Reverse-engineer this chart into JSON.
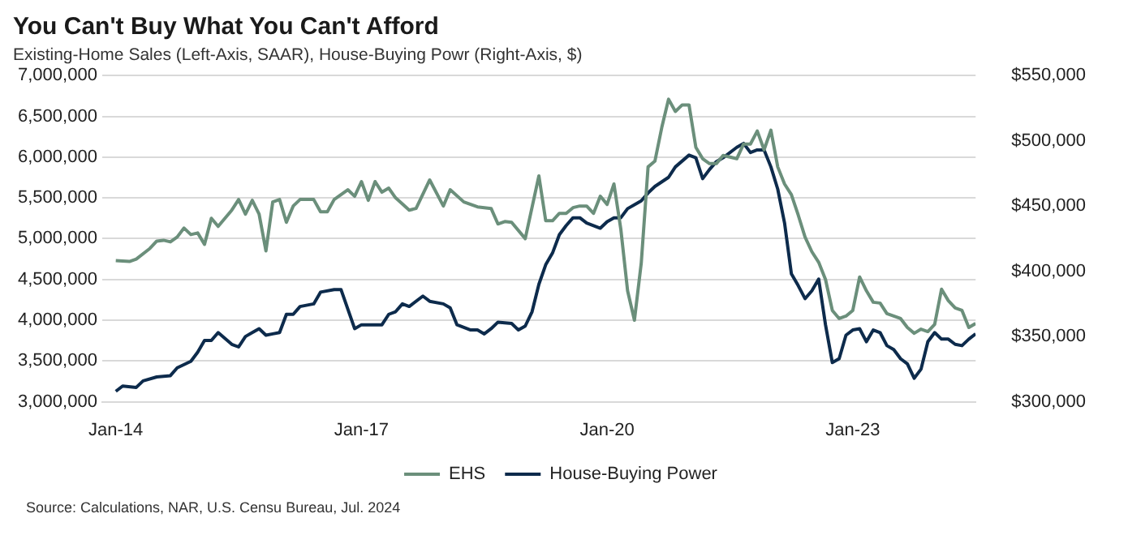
{
  "chart_data": {
    "type": "line",
    "title": "You Can't Buy What You Can't Afford",
    "subtitle": "Existing-Home Sales (Left-Axis, SAAR), House-Buying Powr (Right-Axis, $)",
    "annotations": [
      "Source: Calculations, NAR, U.S. Censu Bureau, Jul. 2024"
    ],
    "xlim": [
      "2013-11",
      "2024-07"
    ],
    "xticks": [
      {
        "value": "2014-01",
        "label": "Jan-14"
      },
      {
        "value": "2017-01",
        "label": "Jan-17"
      },
      {
        "value": "2020-01",
        "label": "Jan-20"
      },
      {
        "value": "2023-01",
        "label": "Jan-23"
      }
    ],
    "ylim": [
      3000000,
      7000000
    ],
    "yticks": [
      {
        "value": 3000000,
        "label": "3,000,000"
      },
      {
        "value": 3500000,
        "label": "3,500,000"
      },
      {
        "value": 4000000,
        "label": "4,000,000"
      },
      {
        "value": 4500000,
        "label": "4,500,000"
      },
      {
        "value": 5000000,
        "label": "5,000,000"
      },
      {
        "value": 5500000,
        "label": "5,500,000"
      },
      {
        "value": 6000000,
        "label": "6,000,000"
      },
      {
        "value": 6500000,
        "label": "6,500,000"
      },
      {
        "value": 7000000,
        "label": "7,000,000"
      }
    ],
    "y2lim": [
      300000,
      550000
    ],
    "y2ticks": [
      {
        "value": 300000,
        "label": "$300,000"
      },
      {
        "value": 350000,
        "label": "$350,000"
      },
      {
        "value": 400000,
        "label": "$400,000"
      },
      {
        "value": 450000,
        "label": "$450,000"
      },
      {
        "value": 500000,
        "label": "$500,000"
      },
      {
        "value": 550000,
        "label": "$550,000"
      }
    ],
    "grid": "y",
    "legend": "bottom",
    "marker": "none",
    "series": [
      {
        "name": "EHS",
        "color": "#6b8f7b",
        "x": [
          "2014-01",
          "2014-03",
          "2014-04",
          "2014-06",
          "2014-07",
          "2014-08",
          "2014-09",
          "2014-10",
          "2014-11",
          "2014-12",
          "2015-01",
          "2015-02",
          "2015-03",
          "2015-04",
          "2015-06",
          "2015-07",
          "2015-08",
          "2015-09",
          "2015-10",
          "2015-11",
          "2015-12",
          "2016-01",
          "2016-02",
          "2016-03",
          "2016-04",
          "2016-06",
          "2016-07",
          "2016-08",
          "2016-09",
          "2016-11",
          "2016-12",
          "2017-01",
          "2017-02",
          "2017-03",
          "2017-04",
          "2017-05",
          "2017-06",
          "2017-08",
          "2017-09",
          "2017-11",
          "2018-01",
          "2018-02",
          "2018-04",
          "2018-06",
          "2018-08",
          "2018-09",
          "2018-10",
          "2018-11",
          "2019-01",
          "2019-03",
          "2019-04",
          "2019-05",
          "2019-06",
          "2019-07",
          "2019-08",
          "2019-09",
          "2019-10",
          "2019-11",
          "2019-12",
          "2020-01",
          "2020-02",
          "2020-03",
          "2020-04",
          "2020-05",
          "2020-06",
          "2020-07",
          "2020-08",
          "2020-09",
          "2020-10",
          "2020-11",
          "2020-12",
          "2021-01",
          "2021-02",
          "2021-03",
          "2021-04",
          "2021-05",
          "2021-06",
          "2021-07",
          "2021-08",
          "2021-09",
          "2021-10",
          "2021-11",
          "2021-12",
          "2022-01",
          "2022-02",
          "2022-03",
          "2022-04",
          "2022-05",
          "2022-06",
          "2022-07",
          "2022-08",
          "2022-09",
          "2022-10",
          "2022-11",
          "2022-12",
          "2023-01",
          "2023-02",
          "2023-03",
          "2023-04",
          "2023-05",
          "2023-06",
          "2023-07",
          "2023-08",
          "2023-09",
          "2023-10",
          "2023-11",
          "2023-12",
          "2024-01",
          "2024-02",
          "2024-03",
          "2024-04",
          "2024-05",
          "2024-06",
          "2024-07"
        ],
        "values": [
          4730000,
          4720000,
          4750000,
          4880000,
          4970000,
          4980000,
          4960000,
          5020000,
          5130000,
          5050000,
          5070000,
          4930000,
          5250000,
          5150000,
          5350000,
          5480000,
          5300000,
          5470000,
          5300000,
          4850000,
          5450000,
          5480000,
          5200000,
          5400000,
          5480000,
          5480000,
          5330000,
          5330000,
          5480000,
          5600000,
          5520000,
          5700000,
          5470000,
          5700000,
          5570000,
          5620000,
          5500000,
          5350000,
          5370000,
          5720000,
          5400000,
          5600000,
          5450000,
          5390000,
          5370000,
          5180000,
          5210000,
          5200000,
          5000000,
          5770000,
          5220000,
          5220000,
          5310000,
          5310000,
          5380000,
          5400000,
          5400000,
          5310000,
          5520000,
          5420000,
          5670000,
          5120000,
          4360000,
          4000000,
          4700000,
          5880000,
          5950000,
          6360000,
          6710000,
          6560000,
          6640000,
          6640000,
          6120000,
          5980000,
          5920000,
          5920000,
          6020000,
          6000000,
          5980000,
          6160000,
          6160000,
          6320000,
          6090000,
          6330000,
          5880000,
          5670000,
          5540000,
          5290000,
          5020000,
          4840000,
          4710000,
          4500000,
          4120000,
          4020000,
          4050000,
          4120000,
          4530000,
          4360000,
          4220000,
          4210000,
          4080000,
          4050000,
          4020000,
          3910000,
          3840000,
          3890000,
          3860000,
          3950000,
          4380000,
          4240000,
          4150000,
          4120000,
          3910000,
          3960000
        ]
      },
      {
        "name": "House-Buying Power",
        "color": "#0d2b4c",
        "axis": "y2",
        "x": [
          "2014-01",
          "2014-02",
          "2014-04",
          "2014-05",
          "2014-07",
          "2014-09",
          "2014-10",
          "2014-12",
          "2015-01",
          "2015-02",
          "2015-03",
          "2015-04",
          "2015-06",
          "2015-07",
          "2015-08",
          "2015-09",
          "2015-10",
          "2015-11",
          "2015-12",
          "2016-01",
          "2016-02",
          "2016-03",
          "2016-04",
          "2016-06",
          "2016-07",
          "2016-09",
          "2016-10",
          "2016-12",
          "2017-01",
          "2017-04",
          "2017-05",
          "2017-06",
          "2017-07",
          "2017-08",
          "2017-10",
          "2017-11",
          "2018-01",
          "2018-02",
          "2018-03",
          "2018-05",
          "2018-06",
          "2018-07",
          "2018-08",
          "2018-09",
          "2018-11",
          "2018-12",
          "2019-01",
          "2019-02",
          "2019-03",
          "2019-04",
          "2019-05",
          "2019-06",
          "2019-07",
          "2019-08",
          "2019-09",
          "2019-10",
          "2019-11",
          "2019-12",
          "2020-01",
          "2020-02",
          "2020-03",
          "2020-04",
          "2020-06",
          "2020-07",
          "2020-08",
          "2020-10",
          "2020-11",
          "2021-01",
          "2021-02",
          "2021-03",
          "2021-04",
          "2021-05",
          "2021-06",
          "2021-08",
          "2021-09",
          "2021-10",
          "2021-11",
          "2021-12",
          "2022-01",
          "2022-02",
          "2022-03",
          "2022-04",
          "2022-05",
          "2022-06",
          "2022-07",
          "2022-08",
          "2022-09",
          "2022-10",
          "2022-11",
          "2022-12",
          "2023-01",
          "2023-02",
          "2023-03",
          "2023-04",
          "2023-05",
          "2023-06",
          "2023-07",
          "2023-08",
          "2023-09",
          "2023-10",
          "2023-11",
          "2023-12",
          "2024-01",
          "2024-02",
          "2024-03",
          "2024-04",
          "2024-05",
          "2024-06",
          "2024-07"
        ],
        "values": [
          308000,
          312000,
          311000,
          316000,
          319000,
          320000,
          326000,
          331000,
          338000,
          347000,
          347000,
          353000,
          344000,
          342000,
          350000,
          353000,
          356000,
          351000,
          352000,
          353000,
          367000,
          367000,
          373000,
          375000,
          384000,
          386000,
          386000,
          356000,
          359000,
          359000,
          367000,
          369000,
          375000,
          373000,
          381000,
          377000,
          375000,
          372000,
          359000,
          355000,
          355000,
          352000,
          356000,
          361000,
          360000,
          355000,
          358000,
          369000,
          390000,
          405000,
          414000,
          428000,
          435000,
          441000,
          441000,
          437000,
          435000,
          433000,
          438000,
          441000,
          441000,
          448000,
          454000,
          460000,
          465000,
          472000,
          480000,
          489000,
          487000,
          471000,
          478000,
          484000,
          487000,
          495000,
          498000,
          491000,
          493000,
          493000,
          480000,
          463000,
          437000,
          398000,
          389000,
          379000,
          385000,
          394000,
          359000,
          330000,
          333000,
          351000,
          355000,
          356000,
          346000,
          355000,
          353000,
          343000,
          340000,
          333000,
          329000,
          318000,
          325000,
          346000,
          353000,
          348000,
          348000,
          344000,
          343000,
          348000,
          352000
        ]
      }
    ]
  }
}
